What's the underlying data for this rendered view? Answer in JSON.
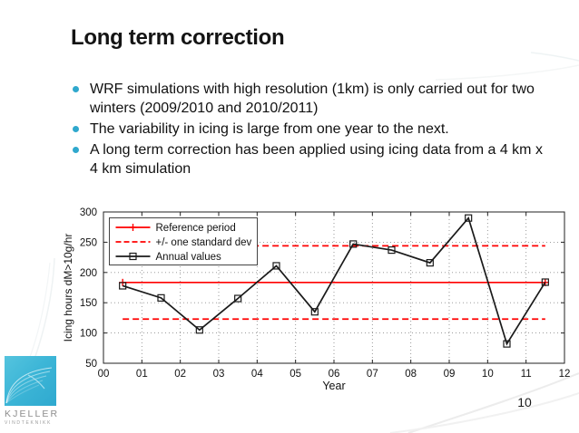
{
  "slide": {
    "title": "Long term correction",
    "page_number": "10"
  },
  "bullets": [
    "WRF simulations with high resolution (1km) is only carried out for two winters (2009/2010 and 2010/2011)",
    "The variability in icing is large from one year to the next.",
    "A long term correction has been applied using icing data from a 4 km x 4 km simulation"
  ],
  "logo": {
    "name": "KJELLER",
    "subtitle": "VINDTEKNIKK",
    "color": "#3db6d7"
  },
  "accent_colors": {
    "bullet": "#2fa8cd",
    "chart_red": "#ff0000",
    "chart_black": "#1a1a1a"
  },
  "chart_data": {
    "type": "line",
    "title": "",
    "xlabel": "Year",
    "ylabel": "Icing hours dM>10g/hr",
    "xlim": [
      0,
      12
    ],
    "ylim": [
      50,
      300
    ],
    "xticks": [
      "00",
      "01",
      "02",
      "03",
      "04",
      "05",
      "06",
      "07",
      "08",
      "09",
      "10",
      "11",
      "12"
    ],
    "yticks": [
      50,
      100,
      150,
      200,
      250,
      300
    ],
    "grid": true,
    "legend_position": "top-left",
    "series": [
      {
        "name": "Reference period",
        "type": "hline",
        "value": 183.5,
        "x_range": [
          0.5,
          11.5
        ],
        "style": "solid",
        "marker": "plus",
        "color": "#ff0000"
      },
      {
        "name": "+/- one standard dev",
        "type": "hlines",
        "values": [
          244,
          123
        ],
        "x_range": [
          0.5,
          11.5
        ],
        "style": "dashed",
        "color": "#ff0000"
      },
      {
        "name": "Annual values",
        "type": "line",
        "style": "solid",
        "marker": "square",
        "color": "#1a1a1a",
        "x": [
          0.5,
          1.5,
          2.5,
          3.5,
          4.5,
          5.5,
          6.5,
          7.5,
          8.5,
          9.5,
          10.5,
          11.5
        ],
        "y": [
          178,
          158,
          105,
          157,
          211,
          135,
          247,
          237,
          216,
          290,
          82,
          184
        ]
      }
    ]
  }
}
